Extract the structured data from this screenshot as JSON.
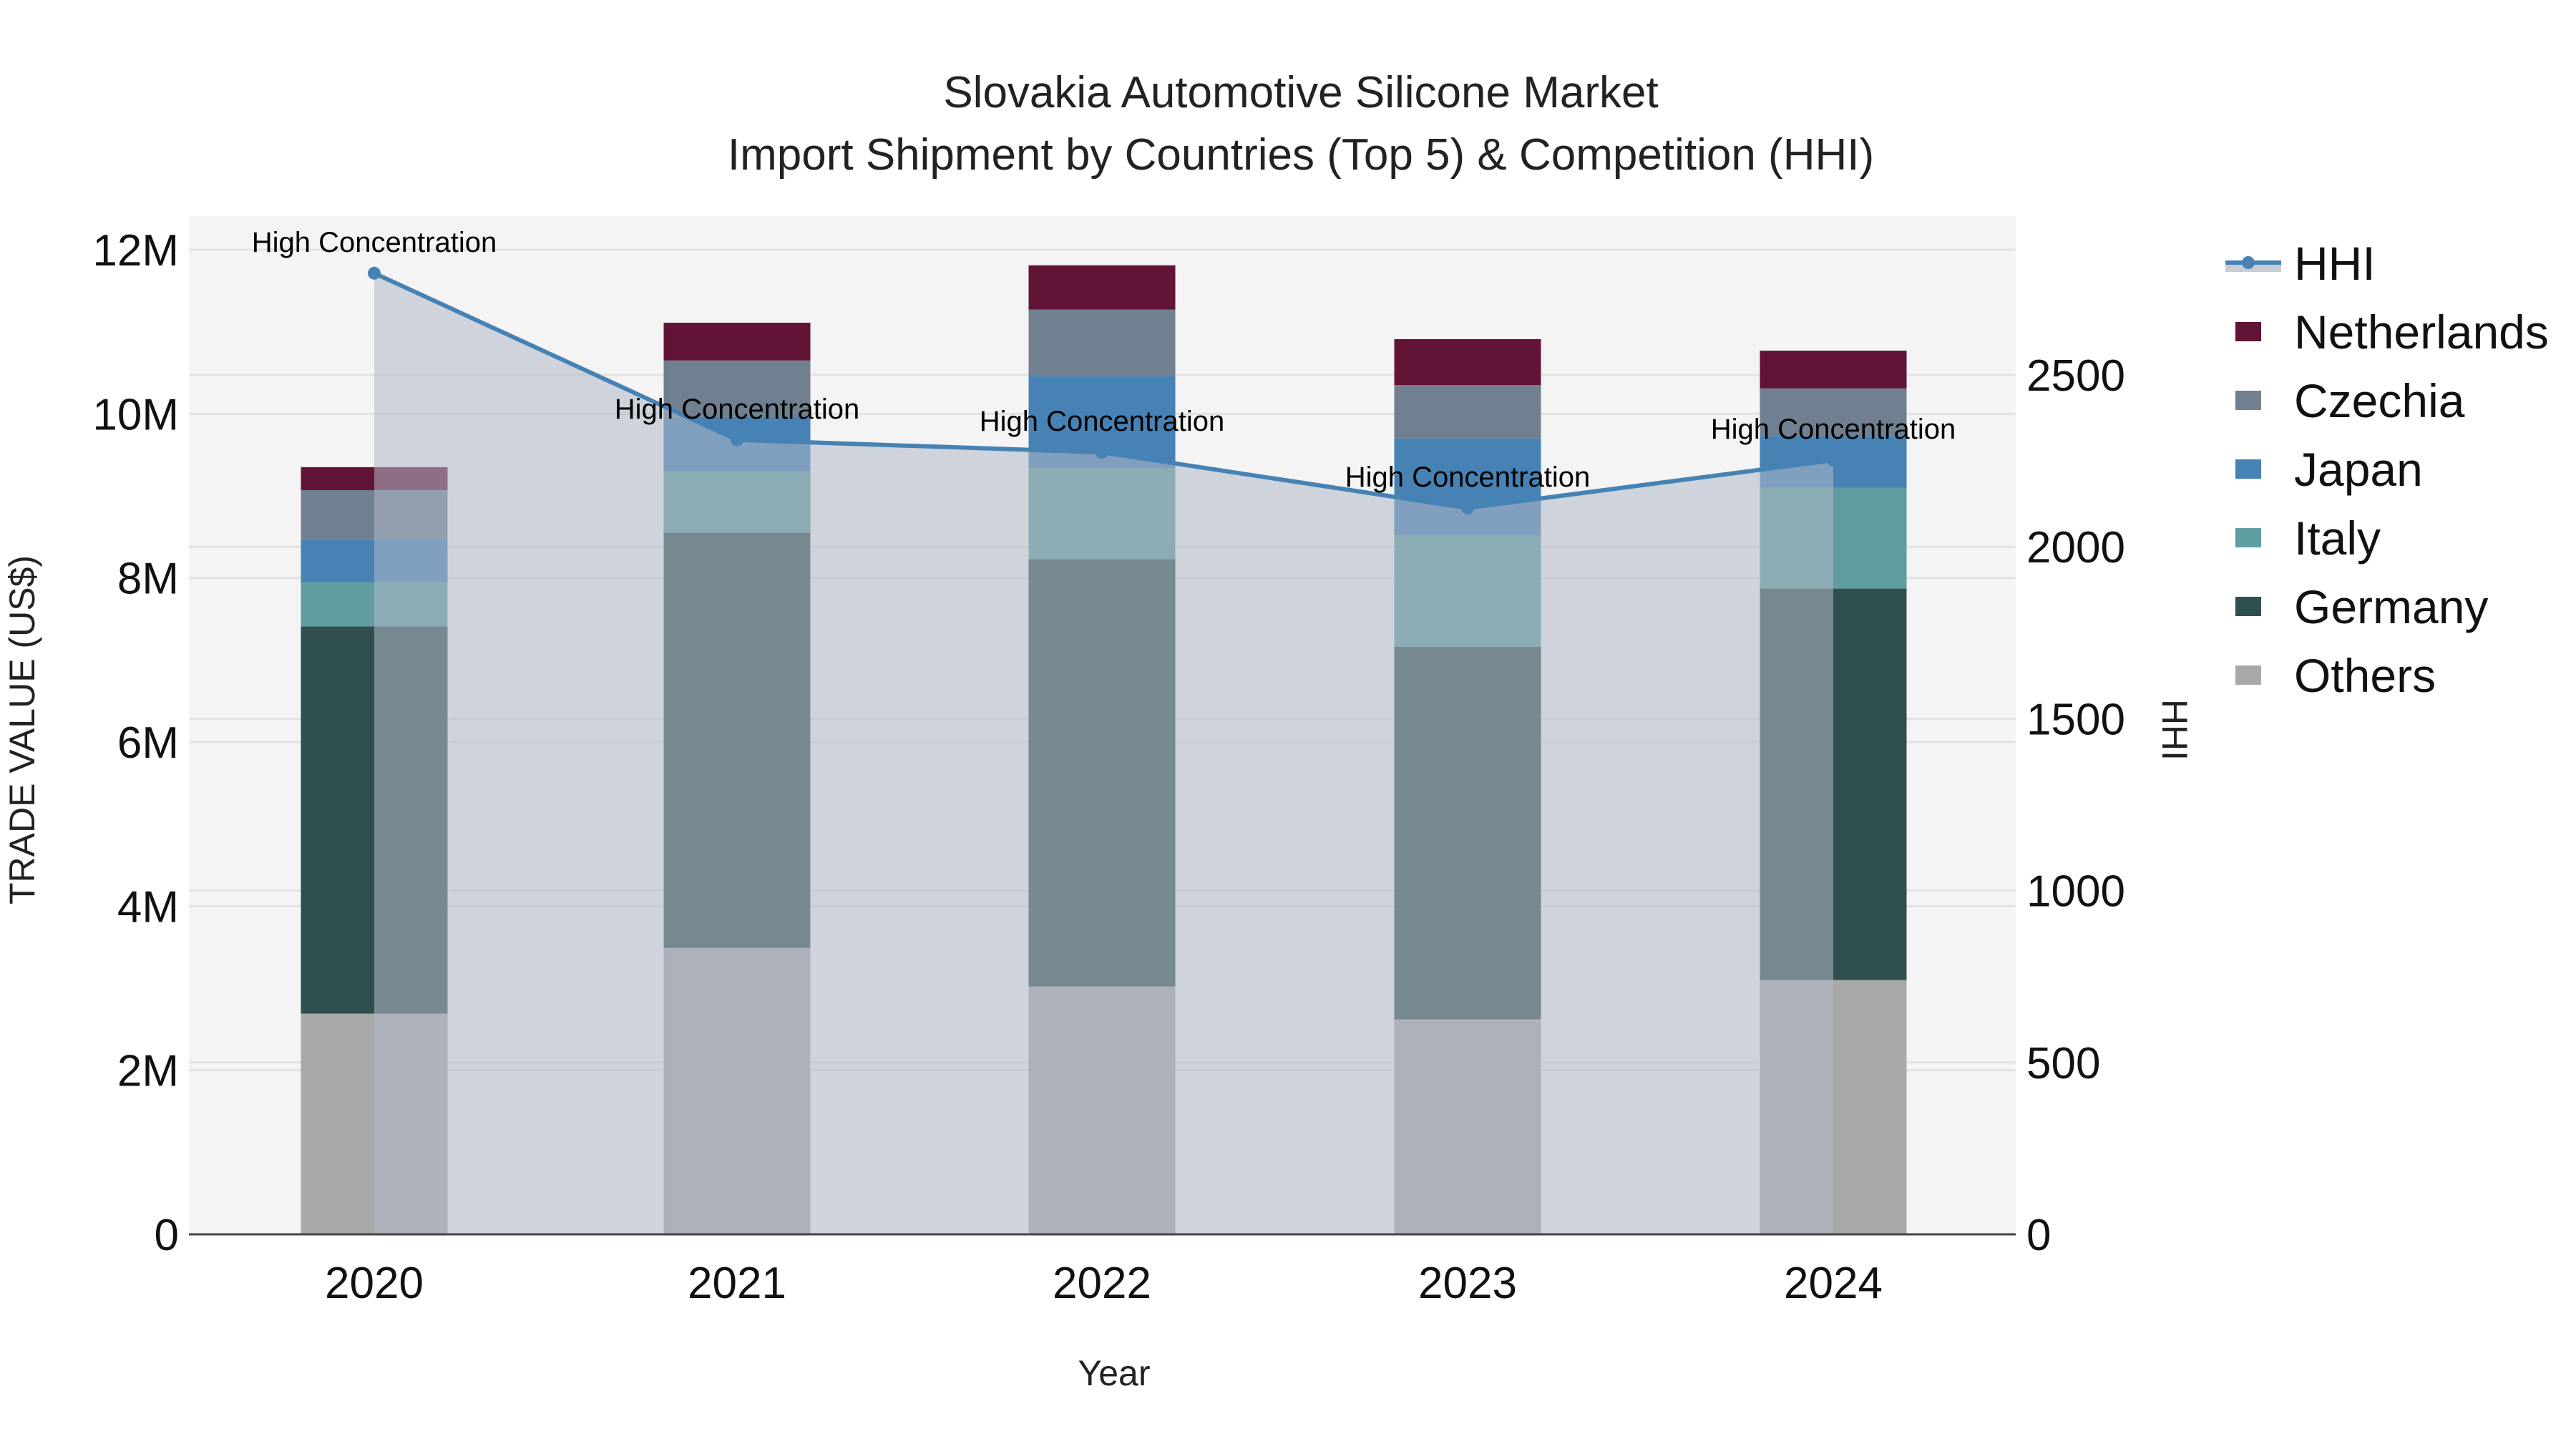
{
  "title": {
    "line1": "Slovakia Automotive Silicone Market",
    "line2": "Import Shipment by Countries (Top 5) & Competition (HHI)"
  },
  "axes": {
    "x_title": "Year",
    "y_left_title": "TRADE VALUE (US$)",
    "y_right_title": "HHI",
    "y_left_ticks": [
      "0",
      "2M",
      "4M",
      "6M",
      "8M",
      "10M",
      "12M"
    ],
    "y_right_ticks": [
      "0",
      "500",
      "1000",
      "1500",
      "2000",
      "2500"
    ]
  },
  "legend": {
    "items": [
      {
        "label": "HHI",
        "type": "line",
        "color": "#4682b4"
      },
      {
        "label": "Netherlands",
        "type": "bar",
        "color": "#621436"
      },
      {
        "label": "Czechia",
        "type": "bar",
        "color": "#708090"
      },
      {
        "label": "Japan",
        "type": "bar",
        "color": "#4682b4"
      },
      {
        "label": "Italy",
        "type": "bar",
        "color": "#5f9ea0"
      },
      {
        "label": "Germany",
        "type": "bar",
        "color": "#2f4f4f"
      },
      {
        "label": "Others",
        "type": "bar",
        "color": "#a9a9a9"
      }
    ]
  },
  "annotation_label": "High Concentration",
  "chart_data": {
    "type": "bar",
    "stacked": true,
    "title": "Slovakia Automotive Silicone Market — Import Shipment by Countries (Top 5) & Competition (HHI)",
    "xlabel": "Year",
    "ylabel": "TRADE VALUE (US$)",
    "y2label": "HHI",
    "categories": [
      "2020",
      "2021",
      "2022",
      "2023",
      "2024"
    ],
    "ylim": [
      0,
      12400000
    ],
    "y2lim": [
      0,
      2960
    ],
    "series": [
      {
        "name": "Others",
        "color": "#a9a9a9",
        "values": [
          2690000,
          3490000,
          3020000,
          2620000,
          3100000
        ]
      },
      {
        "name": "Germany",
        "color": "#2f4f4f",
        "values": [
          4720000,
          5060000,
          5210000,
          4540000,
          4770000
        ]
      },
      {
        "name": "Italy",
        "color": "#5f9ea0",
        "values": [
          540000,
          750000,
          1110000,
          1360000,
          1230000
        ]
      },
      {
        "name": "Japan",
        "color": "#4682b4",
        "values": [
          520000,
          660000,
          1120000,
          1180000,
          630000
        ]
      },
      {
        "name": "Czechia",
        "color": "#708090",
        "values": [
          600000,
          690000,
          810000,
          650000,
          580000
        ]
      },
      {
        "name": "Netherlands",
        "color": "#621436",
        "values": [
          280000,
          460000,
          540000,
          560000,
          460000
        ]
      }
    ],
    "line_series": {
      "name": "HHI",
      "axis": "y2",
      "color": "#4682b4",
      "fill": "tozeroy",
      "values": [
        2796,
        2311,
        2275,
        2113,
        2252
      ],
      "annotations": [
        "High Concentration",
        "High Concentration",
        "High Concentration",
        "High Concentration",
        "High Concentration"
      ]
    },
    "grid": true,
    "legend_position": "right"
  }
}
